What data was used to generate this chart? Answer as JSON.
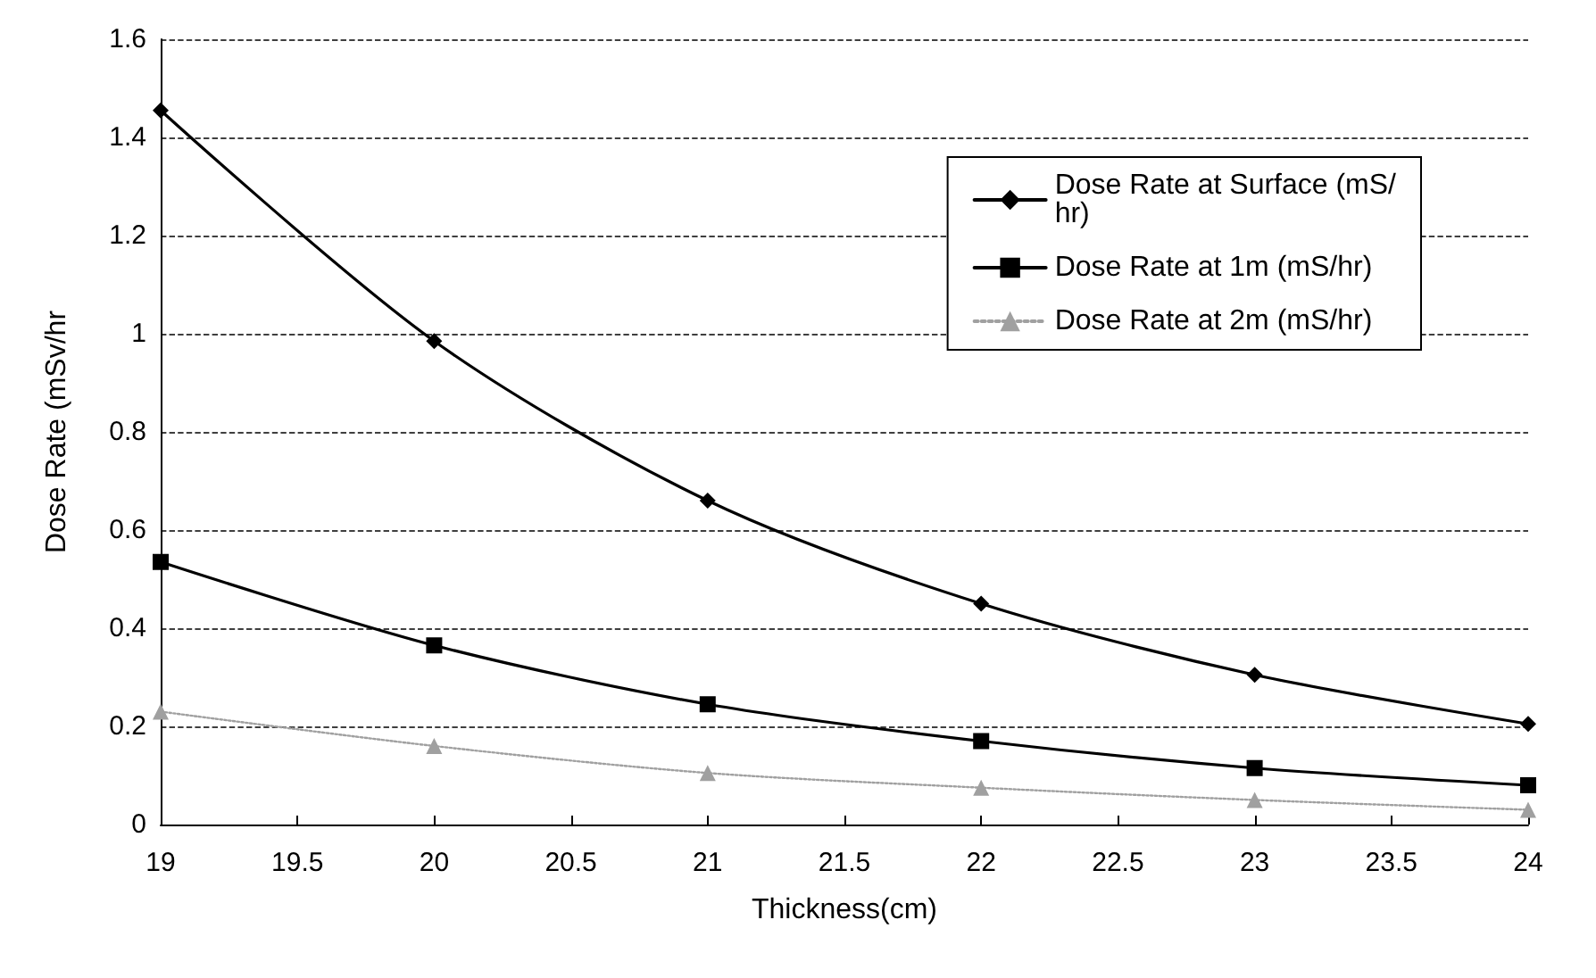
{
  "chart_data": {
    "type": "line",
    "xlabel": "Thickness(cm)",
    "ylabel": "Dose Rate (mSv/hr",
    "x": [
      19,
      20,
      21,
      22,
      23,
      24
    ],
    "series": [
      {
        "name": "Dose Rate at Surface (mS/hr)",
        "color": "#000000",
        "marker": "diamond",
        "line_style": "solid",
        "values": [
          1.455,
          0.985,
          0.66,
          0.45,
          0.305,
          0.205
        ]
      },
      {
        "name": "Dose Rate at 1m (mS/hr)",
        "color": "#000000",
        "marker": "square",
        "line_style": "solid",
        "values": [
          0.535,
          0.365,
          0.245,
          0.17,
          0.115,
          0.08
        ]
      },
      {
        "name": "Dose Rate at 2m (mS/hr)",
        "color": "#a0a0a0",
        "marker": "triangle",
        "line_style": "dotted",
        "values": [
          0.23,
          0.16,
          0.105,
          0.075,
          0.05,
          0.03
        ]
      }
    ],
    "xlim": [
      19,
      24
    ],
    "xticks": [
      19,
      19.5,
      20,
      20.5,
      21,
      21.5,
      22,
      22.5,
      23,
      23.5,
      24
    ],
    "ylim": [
      0,
      1.6
    ],
    "yticks": [
      0,
      0.2,
      0.4,
      0.6,
      0.8,
      1,
      1.2,
      1.4,
      1.6
    ],
    "grid": "y",
    "legend": "top right"
  }
}
